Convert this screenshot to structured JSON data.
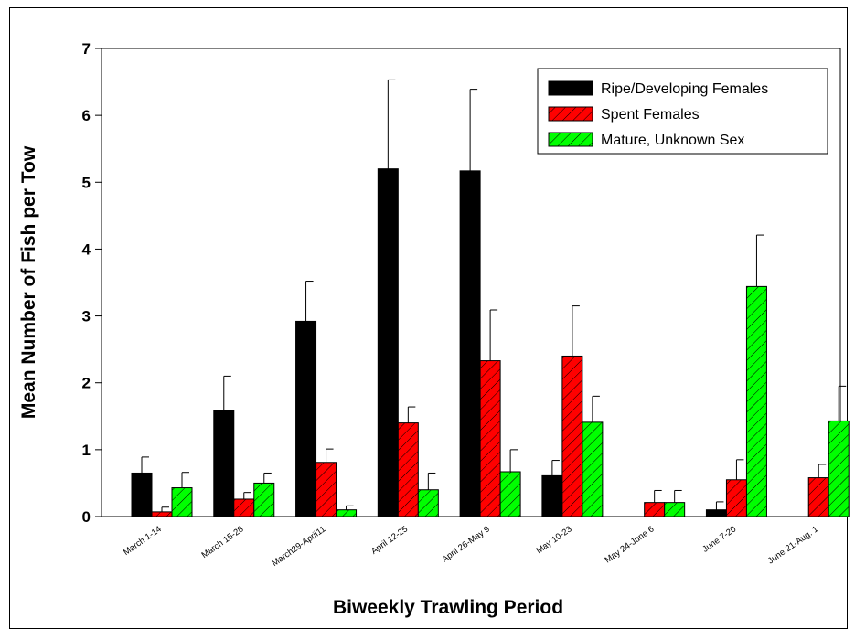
{
  "chart_data": {
    "type": "bar",
    "title": "",
    "xlabel": "Biweekly Trawling Period",
    "ylabel": "Mean Number of Fish per Tow",
    "ylim": [
      0,
      7
    ],
    "yticks": [
      "0",
      "1",
      "2",
      "3",
      "4",
      "5",
      "6",
      "7"
    ],
    "grid": false,
    "legend_position": "top-right",
    "error_bars": true,
    "categories": [
      "March 1-14",
      "March 15-28",
      "March29-April11",
      "April 12-25",
      "April 26-May 9",
      "May 10-23",
      "May 24-June 6",
      "June 7-20",
      "June 21-Aug. 1"
    ],
    "series": [
      {
        "name": "Ripe/Developing Females",
        "color": "#000000",
        "pattern": "solid",
        "values": [
          0.65,
          1.59,
          2.92,
          5.2,
          5.17,
          0.61,
          0,
          0.1,
          0
        ],
        "errors": [
          0.24,
          0.51,
          0.6,
          1.33,
          1.22,
          0.23,
          0,
          0.12,
          0
        ]
      },
      {
        "name": "Spent Females",
        "color": "#ff0000",
        "pattern": "hatch",
        "values": [
          0.07,
          0.26,
          0.81,
          1.4,
          2.33,
          2.4,
          0.21,
          0.55,
          0.58
        ],
        "errors": [
          0.07,
          0.1,
          0.2,
          0.24,
          0.76,
          0.75,
          0.18,
          0.3,
          0.2
        ]
      },
      {
        "name": "Mature, Unknown Sex",
        "color": "#00ff00",
        "pattern": "hatch",
        "values": [
          0.43,
          0.5,
          0.1,
          0.4,
          0.67,
          1.41,
          0.21,
          3.44,
          1.43
        ],
        "errors": [
          0.23,
          0.15,
          0.06,
          0.25,
          0.33,
          0.39,
          0.18,
          0.77,
          0.52
        ]
      }
    ]
  }
}
